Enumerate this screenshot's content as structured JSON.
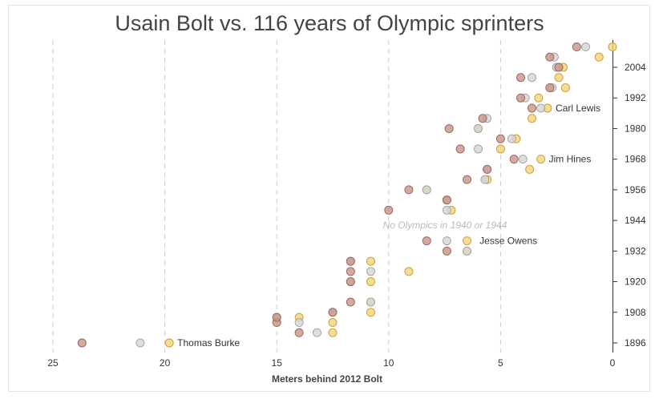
{
  "chart_data": {
    "type": "scatter",
    "title": "Usain Bolt vs. 116 years of Olympic sprinters",
    "xlabel": "Meters behind 2012 Bolt",
    "ylabel": "",
    "xlim": [
      25,
      0
    ],
    "x_reversed": true,
    "ylim": [
      1892,
      2014
    ],
    "x_ticks": [
      25,
      20,
      15,
      10,
      5,
      0
    ],
    "y_ticks": [
      1896,
      1908,
      1920,
      1932,
      1944,
      1956,
      1968,
      1980,
      1992,
      2004
    ],
    "y_axis_side": "right",
    "grid": "vertical dashed",
    "medal_colors": {
      "gold": "#f5d37a",
      "silver": "#d6d6d6",
      "bronze": "#c8958a"
    },
    "note": "No Olympics in 1940 or 1944",
    "annotations": [
      {
        "text": "Thomas Burke",
        "year": 1896,
        "x": 19.8
      },
      {
        "text": "Jesse Owens",
        "year": 1936,
        "x": 6.3
      },
      {
        "text": "Jim Hines",
        "year": 1968,
        "x": 3.2
      },
      {
        "text": "Carl Lewis",
        "year": 1988,
        "x": 2.9
      }
    ],
    "series": [
      {
        "medal": "gold",
        "color": "#f5d37a",
        "points": [
          [
            1896,
            19.8
          ],
          [
            1900,
            12.5
          ],
          [
            1904,
            12.5
          ],
          [
            1906,
            14.0
          ],
          [
            1908,
            10.8
          ],
          [
            1912,
            10.8
          ],
          [
            1920,
            10.8
          ],
          [
            1924,
            9.1
          ],
          [
            1928,
            10.8
          ],
          [
            1932,
            6.5
          ],
          [
            1936,
            6.5
          ],
          [
            1948,
            7.2
          ],
          [
            1952,
            7.4
          ],
          [
            1956,
            8.3
          ],
          [
            1960,
            5.6
          ],
          [
            1964,
            3.7
          ],
          [
            1968,
            3.2
          ],
          [
            1972,
            5.0
          ],
          [
            1976,
            4.3
          ],
          [
            1980,
            6.0
          ],
          [
            1984,
            3.6
          ],
          [
            1988,
            2.9
          ],
          [
            1992,
            3.3
          ],
          [
            1996,
            2.1
          ],
          [
            2000,
            2.4
          ],
          [
            2004,
            2.2
          ],
          [
            2008,
            0.6
          ],
          [
            2012,
            0.0
          ]
        ]
      },
      {
        "medal": "silver",
        "color": "#d6d6d6",
        "points": [
          [
            1896,
            21.1
          ],
          [
            1900,
            13.2
          ],
          [
            1904,
            14.0
          ],
          [
            1906,
            15.0
          ],
          [
            1908,
            12.5
          ],
          [
            1912,
            10.8
          ],
          [
            1920,
            11.7
          ],
          [
            1924,
            10.8
          ],
          [
            1928,
            11.7
          ],
          [
            1932,
            6.5
          ],
          [
            1936,
            7.4
          ],
          [
            1948,
            7.4
          ],
          [
            1952,
            7.4
          ],
          [
            1956,
            8.3
          ],
          [
            1960,
            5.7
          ],
          [
            1964,
            5.6
          ],
          [
            1968,
            4.0
          ],
          [
            1972,
            6.0
          ],
          [
            1976,
            4.5
          ],
          [
            1980,
            6.0
          ],
          [
            1984,
            5.6
          ],
          [
            1988,
            3.2
          ],
          [
            1992,
            3.9
          ],
          [
            1996,
            2.7
          ],
          [
            2000,
            3.6
          ],
          [
            2004,
            2.5
          ],
          [
            2008,
            2.6
          ],
          [
            2012,
            1.2
          ]
        ]
      },
      {
        "medal": "bronze",
        "color": "#c8958a",
        "points": [
          [
            1896,
            23.7
          ],
          [
            1900,
            14.0
          ],
          [
            1904,
            15.0
          ],
          [
            1906,
            15.0
          ],
          [
            1908,
            12.5
          ],
          [
            1912,
            11.7
          ],
          [
            1920,
            11.7
          ],
          [
            1924,
            11.7
          ],
          [
            1928,
            11.7
          ],
          [
            1932,
            7.4
          ],
          [
            1936,
            8.3
          ],
          [
            1948,
            10.0
          ],
          [
            1952,
            7.4
          ],
          [
            1956,
            9.1
          ],
          [
            1960,
            6.5
          ],
          [
            1964,
            5.6
          ],
          [
            1968,
            4.4
          ],
          [
            1972,
            6.8
          ],
          [
            1976,
            5.0
          ],
          [
            1980,
            7.3
          ],
          [
            1984,
            5.8
          ],
          [
            1988,
            3.6
          ],
          [
            1992,
            4.1
          ],
          [
            1996,
            2.8
          ],
          [
            2000,
            4.1
          ],
          [
            2004,
            2.4
          ],
          [
            2008,
            2.8
          ],
          [
            2012,
            1.6
          ]
        ]
      }
    ]
  }
}
